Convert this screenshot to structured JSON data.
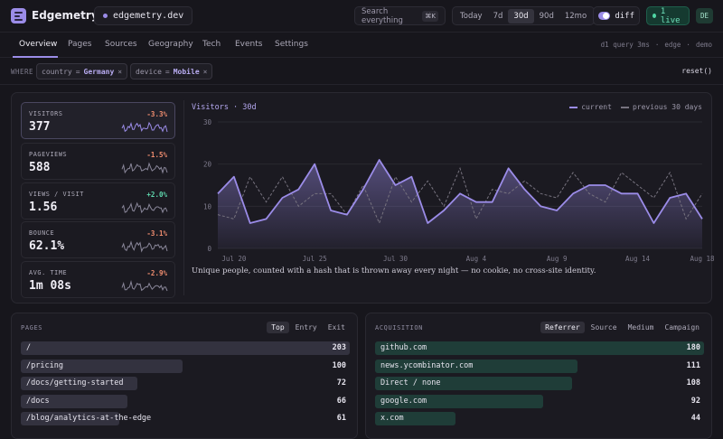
{
  "app": {
    "name": "Edgemetry",
    "site": "edgemetry.dev"
  },
  "header": {
    "search_placeholder": "Search everything",
    "search_shortcut": "⌘K",
    "ranges": [
      "Today",
      "7d",
      "30d",
      "90d",
      "12mo"
    ],
    "active_range": "30d",
    "diff_label": "diff",
    "diff_on": true,
    "live_label": "1 live",
    "avatar": "DE"
  },
  "nav": {
    "tabs": [
      "Overview",
      "Pages",
      "Sources",
      "Geography",
      "Tech",
      "Events",
      "Settings"
    ],
    "active": "Overview",
    "meta": [
      "d1 query 3ms",
      "·",
      "edge",
      "·",
      "demo"
    ]
  },
  "filters": {
    "where_label": "WHERE",
    "chips": [
      {
        "key": "country",
        "op": "=",
        "value": "Germany"
      },
      {
        "key": "device",
        "op": "=",
        "value": "Mobile"
      }
    ],
    "reset_label": "reset()"
  },
  "metrics": [
    {
      "label": "VISITORS",
      "value": "377",
      "delta": "-3.3%",
      "trend": "neg",
      "active": true
    },
    {
      "label": "PAGEVIEWS",
      "value": "588",
      "delta": "-1.5%",
      "trend": "neg",
      "active": false
    },
    {
      "label": "VIEWS / VISIT",
      "value": "1.56",
      "delta": "+2.0%",
      "trend": "pos",
      "active": false
    },
    {
      "label": "BOUNCE",
      "value": "62.1%",
      "delta": "-3.1%",
      "trend": "neg",
      "active": false
    },
    {
      "label": "AVG. TIME",
      "value": "1m 08s",
      "delta": "-2.9%",
      "trend": "neg",
      "active": false
    }
  ],
  "colors": {
    "accent": "#9b8ce8",
    "positive": "#5fd8ae",
    "negative": "#f08d6f",
    "previous": "#77737f"
  },
  "chart_data": {
    "type": "area",
    "title": "Visitors · 30d",
    "legend": [
      "current",
      "previous 30 days"
    ],
    "legend_position": "top-right",
    "x": [
      "Jul 19",
      "Jul 20",
      "Jul 21",
      "Jul 22",
      "Jul 23",
      "Jul 24",
      "Jul 25",
      "Jul 26",
      "Jul 27",
      "Jul 28",
      "Jul 29",
      "Jul 30",
      "Jul 31",
      "Aug 1",
      "Aug 2",
      "Aug 3",
      "Aug 4",
      "Aug 5",
      "Aug 6",
      "Aug 7",
      "Aug 8",
      "Aug 9",
      "Aug 10",
      "Aug 11",
      "Aug 12",
      "Aug 13",
      "Aug 14",
      "Aug 15",
      "Aug 16",
      "Aug 17",
      "Aug 18"
    ],
    "tick_labels": [
      "Jul 20",
      "Jul 25",
      "Jul 30",
      "Aug 4",
      "Aug 9",
      "Aug 14",
      "Aug 18"
    ],
    "ylim": [
      0,
      30
    ],
    "yticks": [
      0,
      10,
      20,
      30
    ],
    "grid": true,
    "series": [
      {
        "name": "current",
        "values": [
          13,
          17,
          6,
          7,
          12,
          14,
          20,
          9,
          8,
          14,
          21,
          15,
          17,
          6,
          9,
          13,
          11,
          11,
          19,
          14,
          10,
          9,
          13,
          15,
          15,
          13,
          13,
          6,
          12,
          13,
          7
        ]
      },
      {
        "name": "previous 30 days",
        "values": [
          8,
          7,
          17,
          11,
          17,
          10,
          13,
          13,
          8,
          15,
          6,
          17,
          11,
          16,
          10,
          19,
          7,
          14,
          13,
          16,
          13,
          12,
          18,
          13,
          11,
          18,
          15,
          12,
          18,
          7,
          13
        ]
      }
    ]
  },
  "footnote": "Unique people, counted with a hash that is thrown away every night — no cookie, no cross-site identity.",
  "pages": {
    "title": "PAGES",
    "tabs": [
      "Top",
      "Entry",
      "Exit"
    ],
    "active": "Top",
    "rows": [
      {
        "name": "/",
        "value": 203
      },
      {
        "name": "/pricing",
        "value": 100
      },
      {
        "name": "/docs/getting-started",
        "value": 72
      },
      {
        "name": "/docs",
        "value": 66
      },
      {
        "name": "/blog/analytics-at-the-edge",
        "value": 61
      }
    ]
  },
  "acquisition": {
    "title": "ACQUISITION",
    "tabs": [
      "Referrer",
      "Source",
      "Medium",
      "Campaign"
    ],
    "active": "Referrer",
    "rows": [
      {
        "name": "github.com",
        "value": 180
      },
      {
        "name": "news.ycombinator.com",
        "value": 111
      },
      {
        "name": "Direct / none",
        "value": 108
      },
      {
        "name": "google.com",
        "value": 92
      },
      {
        "name": "x.com",
        "value": 44
      }
    ]
  }
}
